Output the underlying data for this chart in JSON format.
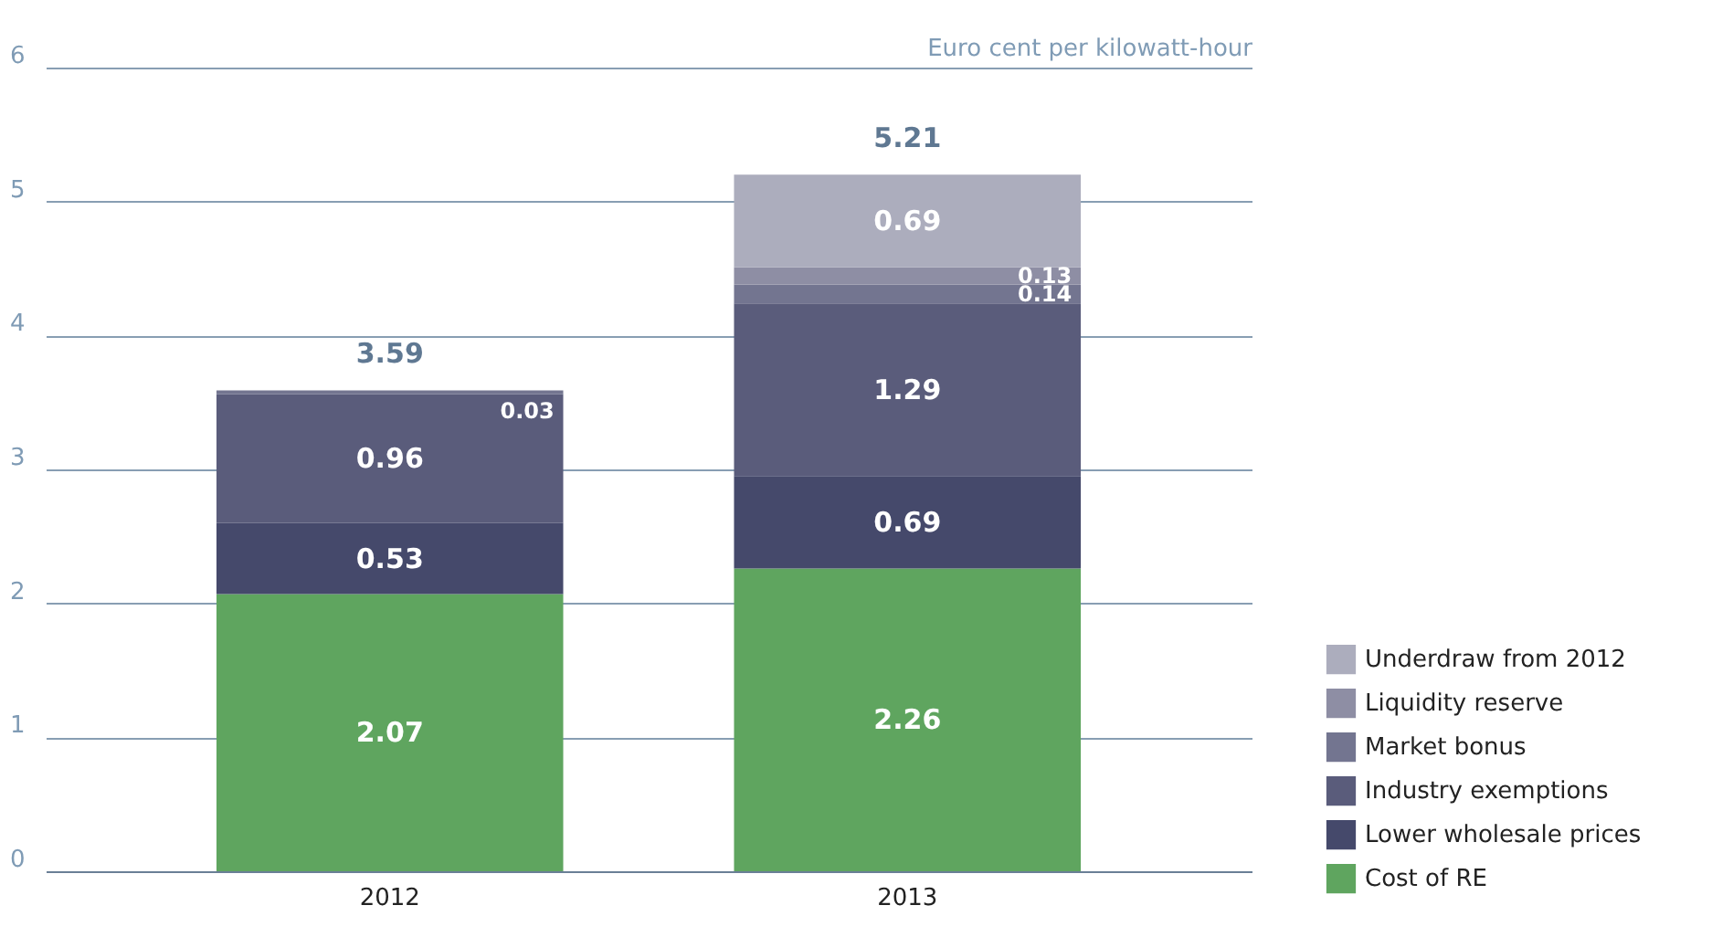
{
  "chart_data": {
    "type": "bar",
    "stacked": true,
    "ylabel": "Euro cent per kilowatt-hour",
    "categories": [
      "2012",
      "2013"
    ],
    "series": [
      {
        "name": "Cost of RE",
        "color": "#5fa55f",
        "values": [
          2.07,
          2.26
        ]
      },
      {
        "name": "Lower wholesale prices",
        "color": "#45496b",
        "values": [
          0.53,
          0.69
        ]
      },
      {
        "name": "Industry exemptions",
        "color": "#5a5c7b",
        "values": [
          0.96,
          1.29
        ]
      },
      {
        "name": "Market bonus",
        "color": "#737590",
        "values": [
          0.03,
          0.14
        ]
      },
      {
        "name": "Liquidity reserve",
        "color": "#8e8ea4",
        "values": [
          null,
          0.13
        ]
      },
      {
        "name": "Underdraw from 2012",
        "color": "#acadbd",
        "values": [
          null,
          0.69
        ]
      }
    ],
    "totals": [
      "3.59",
      "5.21"
    ],
    "data_labels": true,
    "ylim": [
      0,
      6
    ],
    "yticks": [
      0,
      1,
      2,
      3,
      4,
      5,
      6
    ],
    "grid": "y",
    "legend": "bottom right"
  }
}
